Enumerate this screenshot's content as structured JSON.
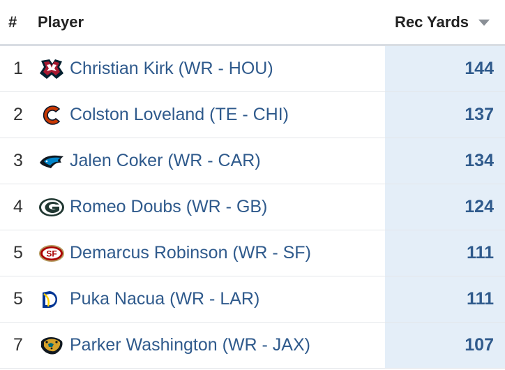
{
  "header": {
    "rank_label": "#",
    "player_label": "Player",
    "yards_label": "Rec Yards",
    "sort_icon": "caret-down-icon"
  },
  "rows": [
    {
      "rank": "1",
      "player": "Christian Kirk (WR - HOU)",
      "yards": "144",
      "logo": "texans-logo-icon"
    },
    {
      "rank": "2",
      "player": "Colston Loveland (TE - CHI)",
      "yards": "137",
      "logo": "bears-logo-icon"
    },
    {
      "rank": "3",
      "player": "Jalen Coker (WR - CAR)",
      "yards": "134",
      "logo": "panthers-logo-icon"
    },
    {
      "rank": "4",
      "player": "Romeo Doubs (WR - GB)",
      "yards": "124",
      "logo": "packers-logo-icon"
    },
    {
      "rank": "5",
      "player": "Demarcus Robinson (WR - SF)",
      "yards": "111",
      "logo": "49ers-logo-icon"
    },
    {
      "rank": "5",
      "player": "Puka Nacua (WR - LAR)",
      "yards": "111",
      "logo": "rams-logo-icon"
    },
    {
      "rank": "7",
      "player": "Parker Washington (WR - JAX)",
      "yards": "107",
      "logo": "jaguars-logo-icon"
    }
  ],
  "colors": {
    "link": "#2f5a8c",
    "highlight_column": "#e4eef8",
    "texans_navy": "#03202f",
    "texans_red": "#a71930",
    "bears_orange": "#c83803",
    "bears_navy": "#0b162a",
    "panthers_blue": "#0085ca",
    "packers_green": "#203731",
    "packers_gold": "#ffb612",
    "niners_red": "#aa0000",
    "niners_gold": "#b3995d",
    "rams_blue": "#003594",
    "rams_gold": "#ffd100",
    "jaguars_teal": "#006778",
    "jaguars_gold": "#d7a22a"
  }
}
